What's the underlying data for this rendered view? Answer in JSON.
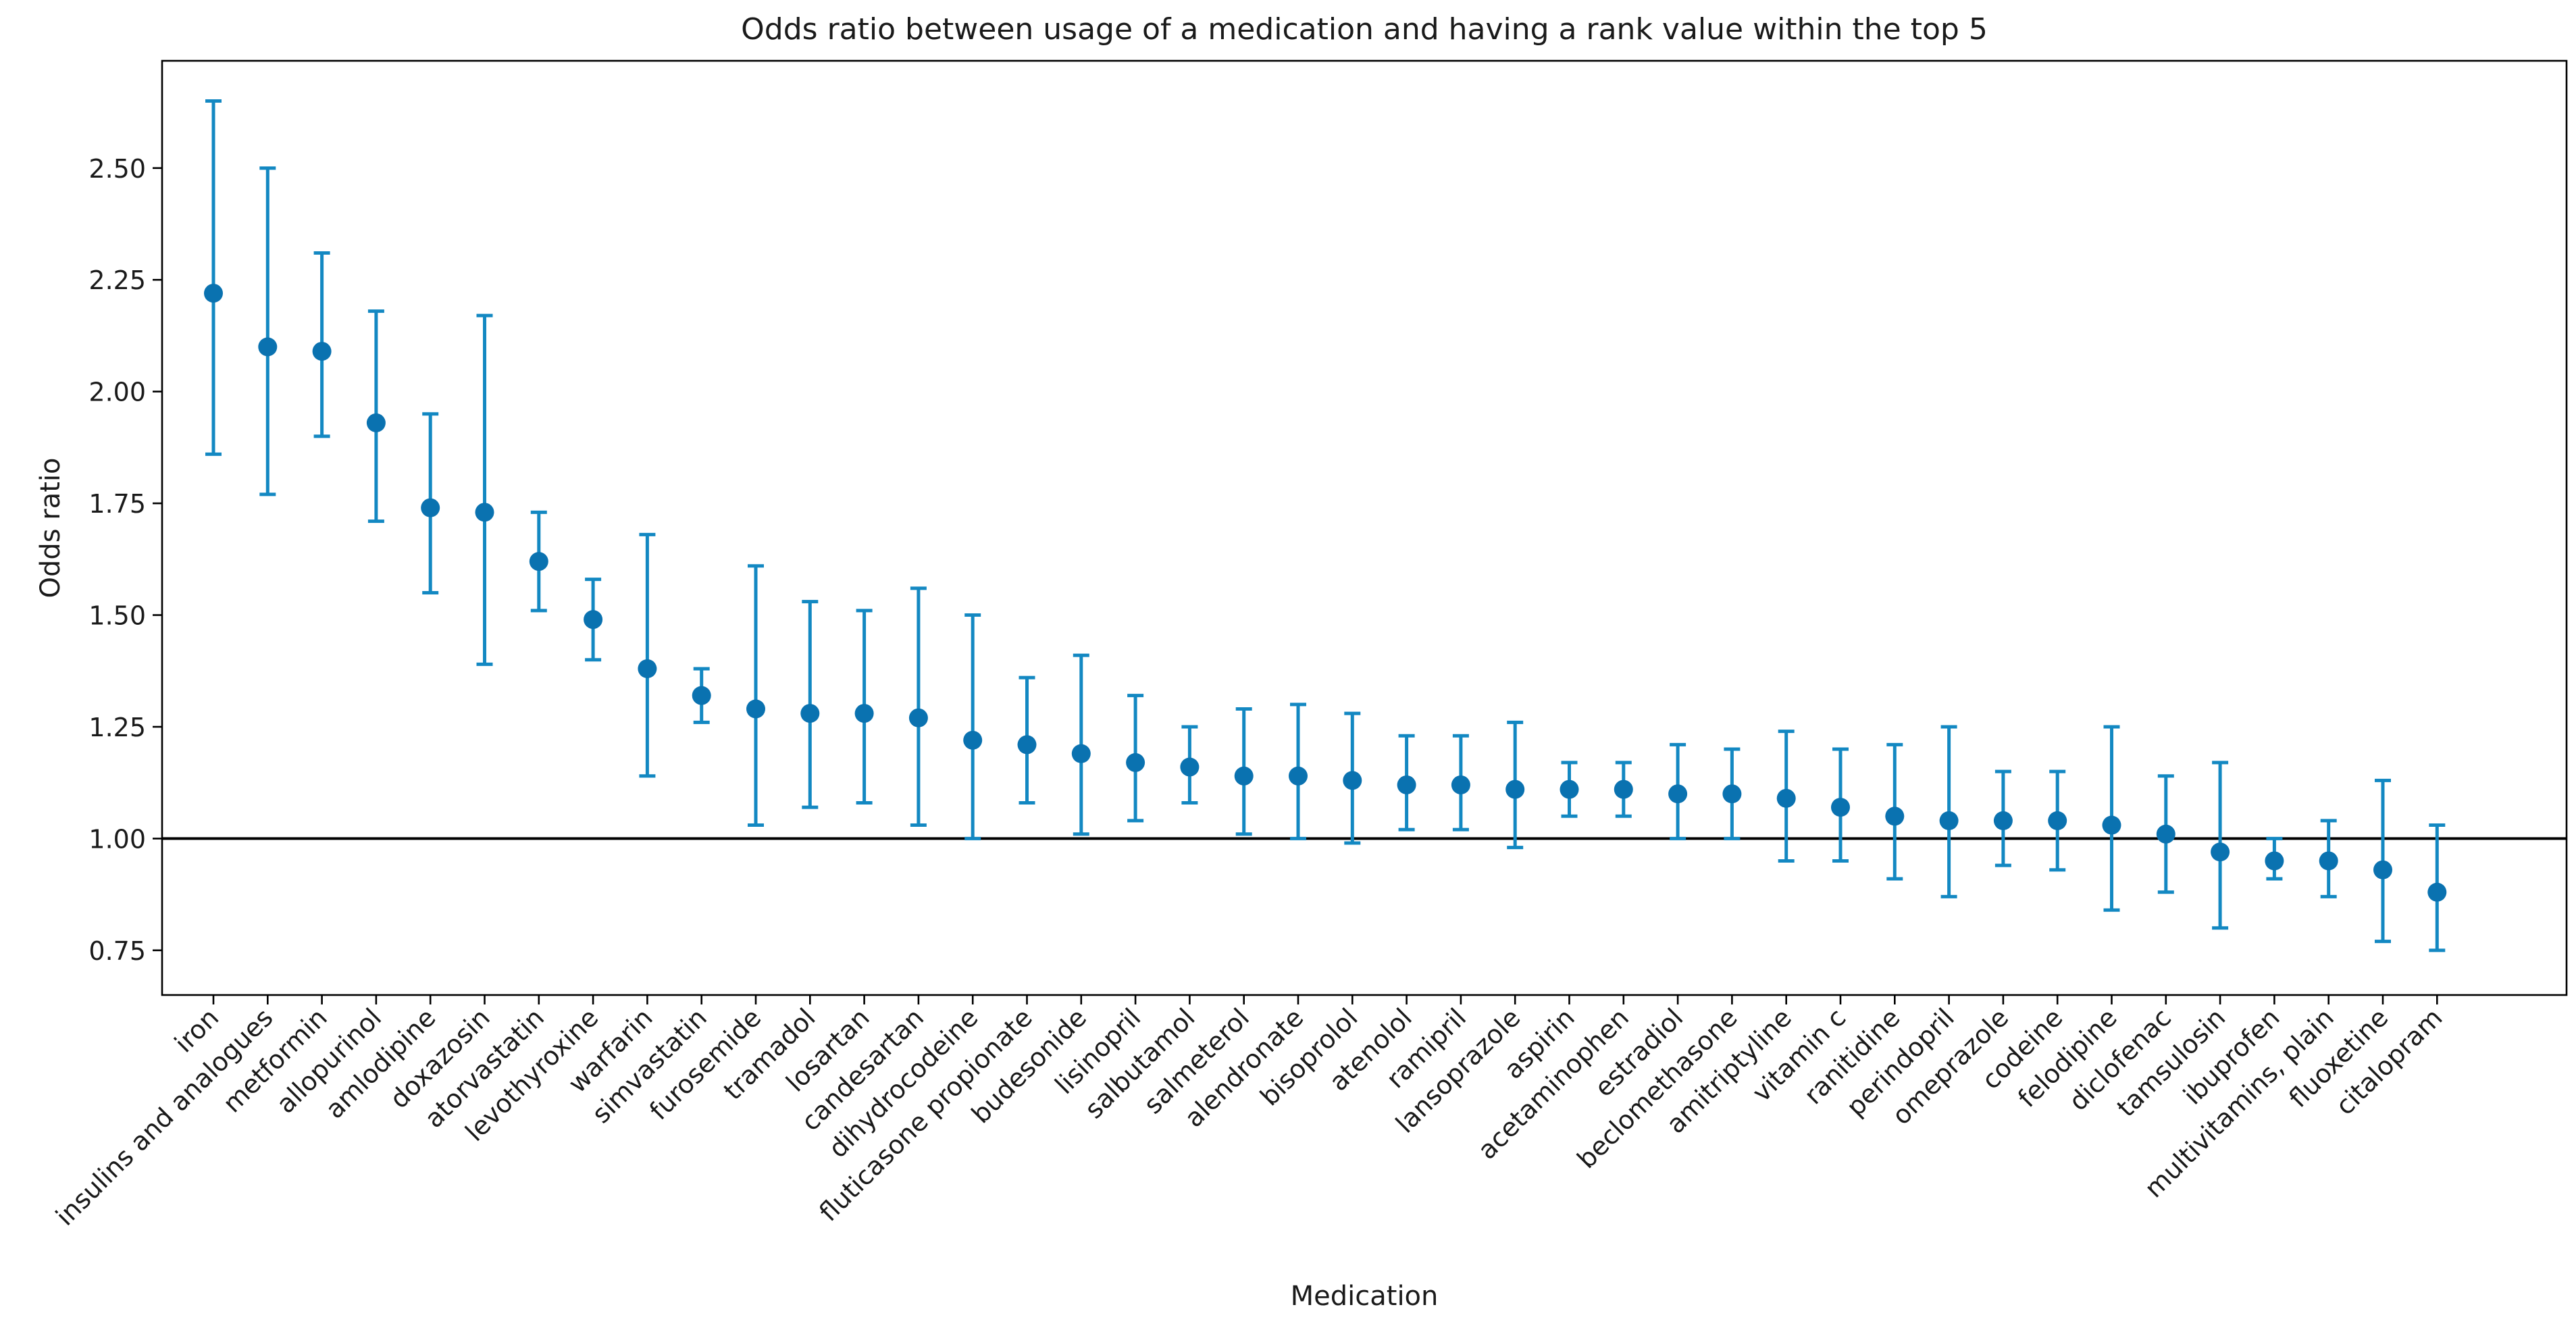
{
  "chart_data": {
    "type": "errorbar",
    "title": "Odds ratio between usage of a medication and having a rank value within the top 5",
    "xlabel": "Medication",
    "ylabel": "Odds ratio",
    "ylim": [
      0.65,
      2.74
    ],
    "yticks": [
      0.75,
      1.0,
      1.25,
      1.5,
      1.75,
      2.0,
      2.25,
      2.5
    ],
    "ytick_labels": [
      "0.75",
      "1.00",
      "1.25",
      "1.50",
      "1.75",
      "2.00",
      "2.25",
      "2.50"
    ],
    "reference_line": 1.0,
    "colors": {
      "marker": "#0a72b0",
      "errorbar": "#1388c2",
      "reference": "#000000",
      "axis": "#000000"
    },
    "categories": [
      "iron",
      "insulins and analogues",
      "metformin",
      "allopurinol",
      "amlodipine",
      "doxazosin",
      "atorvastatin",
      "levothyroxine",
      "warfarin",
      "simvastatin",
      "furosemide",
      "tramadol",
      "losartan",
      "candesartan",
      "dihydrocodeine",
      "fluticasone propionate",
      "budesonide",
      "lisinopril",
      "salbutamol",
      "salmeterol",
      "alendronate",
      "bisoprolol",
      "atenolol",
      "ramipril",
      "lansoprazole",
      "aspirin",
      "acetaminophen",
      "estradiol",
      "beclomethasone",
      "amitriptyline",
      "vitamin c",
      "ranitidine",
      "perindopril",
      "omeprazole",
      "codeine",
      "felodipine",
      "diclofenac",
      "tamsulosin",
      "ibuprofen",
      "multivitamins, plain",
      "fluoxetine",
      "citalopram"
    ],
    "values": [
      2.22,
      2.1,
      2.09,
      1.93,
      1.74,
      1.73,
      1.62,
      1.49,
      1.38,
      1.32,
      1.29,
      1.28,
      1.28,
      1.27,
      1.22,
      1.21,
      1.19,
      1.17,
      1.16,
      1.14,
      1.14,
      1.13,
      1.12,
      1.12,
      1.11,
      1.11,
      1.11,
      1.1,
      1.1,
      1.09,
      1.07,
      1.05,
      1.04,
      1.04,
      1.04,
      1.03,
      1.01,
      0.97,
      0.95,
      0.95,
      0.93,
      0.88
    ],
    "lower": [
      1.86,
      1.77,
      1.9,
      1.71,
      1.55,
      1.39,
      1.51,
      1.4,
      1.14,
      1.26,
      1.03,
      1.07,
      1.08,
      1.03,
      1.0,
      1.08,
      1.01,
      1.04,
      1.08,
      1.01,
      1.0,
      0.99,
      1.02,
      1.02,
      0.98,
      1.05,
      1.05,
      1.0,
      1.0,
      0.95,
      0.95,
      0.91,
      0.87,
      0.94,
      0.93,
      0.84,
      0.88,
      0.8,
      0.91,
      0.87,
      0.77,
      0.75
    ],
    "upper": [
      2.65,
      2.5,
      2.31,
      2.18,
      1.95,
      2.17,
      1.73,
      1.58,
      1.68,
      1.38,
      1.61,
      1.53,
      1.51,
      1.56,
      1.5,
      1.36,
      1.41,
      1.32,
      1.25,
      1.29,
      1.3,
      1.28,
      1.23,
      1.23,
      1.26,
      1.17,
      1.17,
      1.21,
      1.2,
      1.24,
      1.2,
      1.21,
      1.25,
      1.15,
      1.15,
      1.25,
      1.14,
      1.17,
      1.0,
      1.04,
      1.13,
      1.03
    ]
  }
}
